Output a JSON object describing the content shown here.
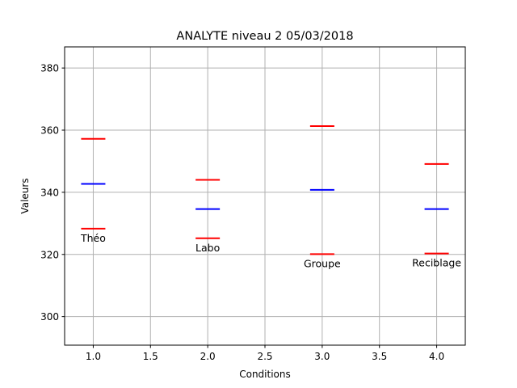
{
  "chart_data": {
    "type": "scatter",
    "title": "ANALYTE niveau 2 05/03/2018",
    "xlabel": "Conditions",
    "ylabel": "Valeurs",
    "xlim": [
      0.75,
      4.25
    ],
    "ylim": [
      290.8,
      386.8
    ],
    "xticks": [
      1.0,
      1.5,
      2.0,
      2.5,
      3.0,
      3.5,
      4.0
    ],
    "xtick_labels": [
      "1.0",
      "1.5",
      "2.0",
      "2.5",
      "3.0",
      "3.5",
      "4.0"
    ],
    "yticks": [
      300,
      320,
      340,
      360,
      380
    ],
    "ytick_labels": [
      "300",
      "320",
      "340",
      "360",
      "380"
    ],
    "grid": true,
    "colors": {
      "limit": "#ff0000",
      "mean": "#0000ff",
      "grid": "#b0b0b0"
    },
    "groups": [
      {
        "x": 1,
        "label": "Théo",
        "upper": 357.2,
        "mean": 342.7,
        "lower": 328.3
      },
      {
        "x": 2,
        "label": "Labo",
        "upper": 344.0,
        "mean": 334.6,
        "lower": 325.2
      },
      {
        "x": 3,
        "label": "Groupe",
        "upper": 361.3,
        "mean": 340.8,
        "lower": 320.1
      },
      {
        "x": 4,
        "label": "Reciblage",
        "upper": 349.1,
        "mean": 334.6,
        "lower": 320.3
      }
    ]
  }
}
